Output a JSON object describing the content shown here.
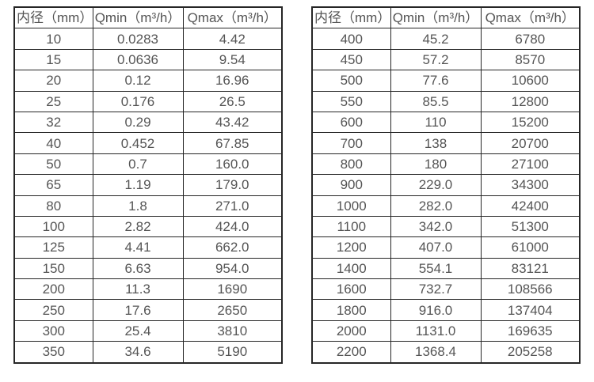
{
  "colors": {
    "background": "#ffffff",
    "border": "#262626",
    "text": "#555555"
  },
  "tables": [
    {
      "name": "small-diameters",
      "headers": [
        "内径（mm）",
        "Qmin（m³/h）",
        "Qmax（m³/h）"
      ],
      "rows": [
        [
          "10",
          "0.0283",
          "4.42"
        ],
        [
          "15",
          "0.0636",
          "9.54"
        ],
        [
          "20",
          "0.12",
          "16.96"
        ],
        [
          "25",
          "0.176",
          "26.5"
        ],
        [
          "32",
          "0.29",
          "43.42"
        ],
        [
          "40",
          "0.452",
          "67.85"
        ],
        [
          "50",
          "0.7",
          "160.0"
        ],
        [
          "65",
          "1.19",
          "179.0"
        ],
        [
          "80",
          "1.8",
          "271.0"
        ],
        [
          "100",
          "2.82",
          "424.0"
        ],
        [
          "125",
          "4.41",
          "662.0"
        ],
        [
          "150",
          "6.63",
          "954.0"
        ],
        [
          "200",
          "11.3",
          "1690"
        ],
        [
          "250",
          "17.6",
          "2650"
        ],
        [
          "300",
          "25.4",
          "3810"
        ],
        [
          "350",
          "34.6",
          "5190"
        ]
      ]
    },
    {
      "name": "large-diameters",
      "headers": [
        "内径（mm）",
        "Qmin（m³/h）",
        "Qmax（m³/h）"
      ],
      "rows": [
        [
          "400",
          "45.2",
          "6780"
        ],
        [
          "450",
          "57.2",
          "8570"
        ],
        [
          "500",
          "77.6",
          "10600"
        ],
        [
          "550",
          "85.5",
          "12800"
        ],
        [
          "600",
          "110",
          "15200"
        ],
        [
          "700",
          "138",
          "20700"
        ],
        [
          "800",
          "180",
          "27100"
        ],
        [
          "900",
          "229.0",
          "34300"
        ],
        [
          "1000",
          "282.0",
          "42400"
        ],
        [
          "1100",
          "342.0",
          "51300"
        ],
        [
          "1200",
          "407.0",
          "61000"
        ],
        [
          "1400",
          "554.1",
          "83121"
        ],
        [
          "1600",
          "732.7",
          "108566"
        ],
        [
          "1800",
          "916.0",
          "137404"
        ],
        [
          "2000",
          "1131.0",
          "169635"
        ],
        [
          "2200",
          "1368.4",
          "205258"
        ]
      ]
    }
  ]
}
